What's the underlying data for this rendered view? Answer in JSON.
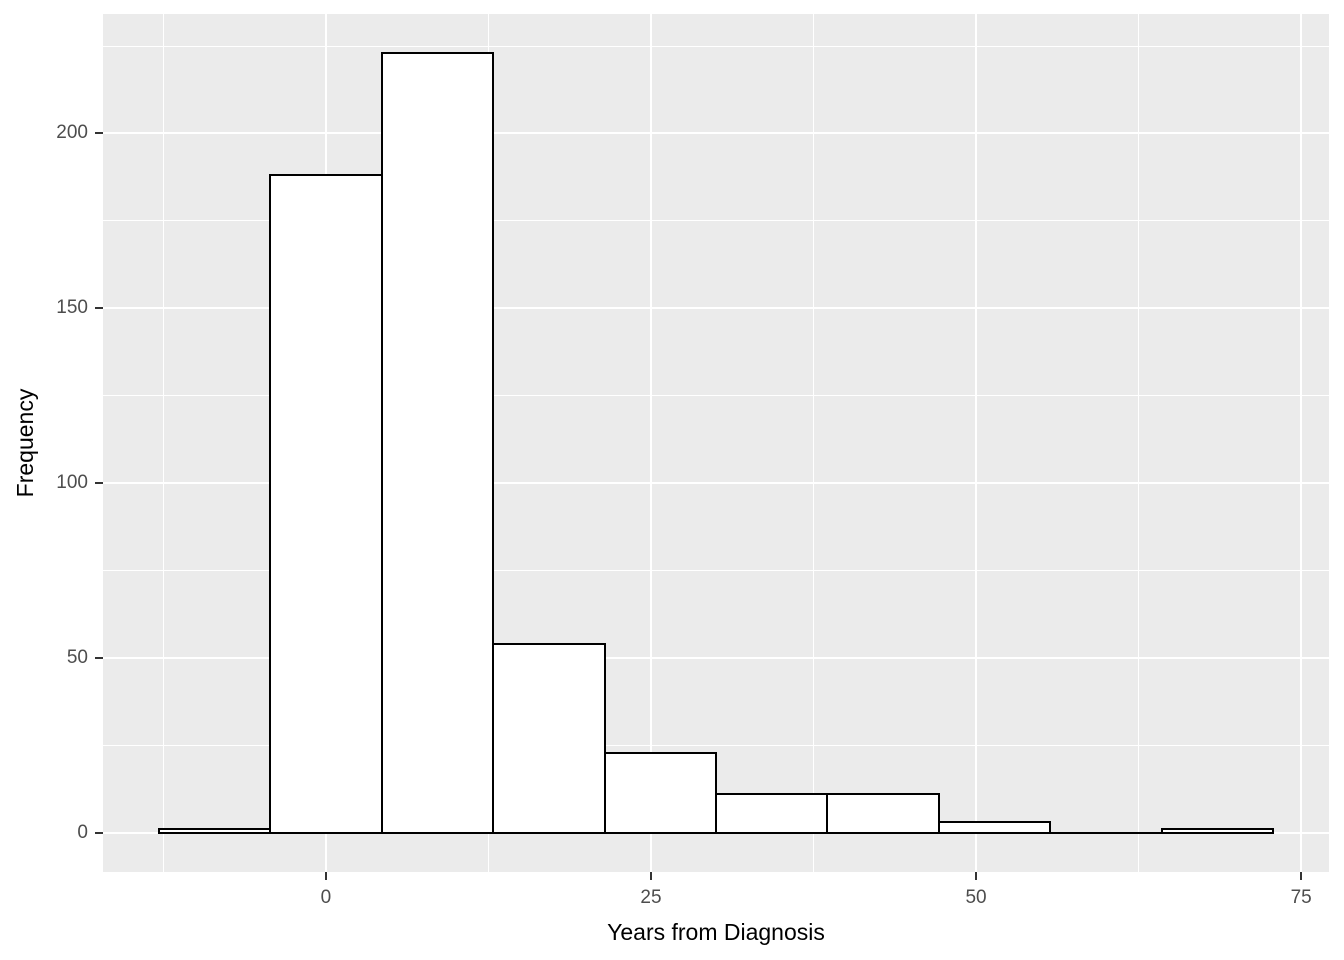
{
  "chart_data": {
    "type": "bar",
    "subtype": "histogram",
    "title": "",
    "xlabel": "Years from Diagnosis",
    "ylabel": "Frequency",
    "bin_edges": [
      -12.857,
      -4.286,
      4.286,
      12.857,
      21.429,
      30.0,
      38.571,
      47.143,
      55.714,
      64.286,
      72.857
    ],
    "counts": [
      1,
      188,
      223,
      54,
      23,
      11,
      11,
      3,
      0,
      1
    ],
    "x_ticks": [
      0,
      25,
      50,
      75
    ],
    "y_ticks": [
      0,
      50,
      100,
      150,
      200
    ],
    "x_minor_gridlines": [
      -12.5,
      12.5,
      37.5,
      62.5
    ],
    "y_minor_gridlines": [
      25,
      75,
      125,
      175,
      225
    ],
    "xlim": [
      -17.14,
      77.14
    ],
    "ylim": [
      -11.16,
      234.15
    ],
    "grid": "major-and-minor",
    "legend_position": "none",
    "style": {
      "page_background": "#FFFFFF",
      "panel_background": "#EBEBEB",
      "gridline_color": "#FFFFFF",
      "bar_fill": "#FFFFFF",
      "bar_outline": "#000000",
      "tick_label_color": "#4D4D4D",
      "axis_title_color": "#000000",
      "tick_mark_color": "#333333"
    }
  }
}
